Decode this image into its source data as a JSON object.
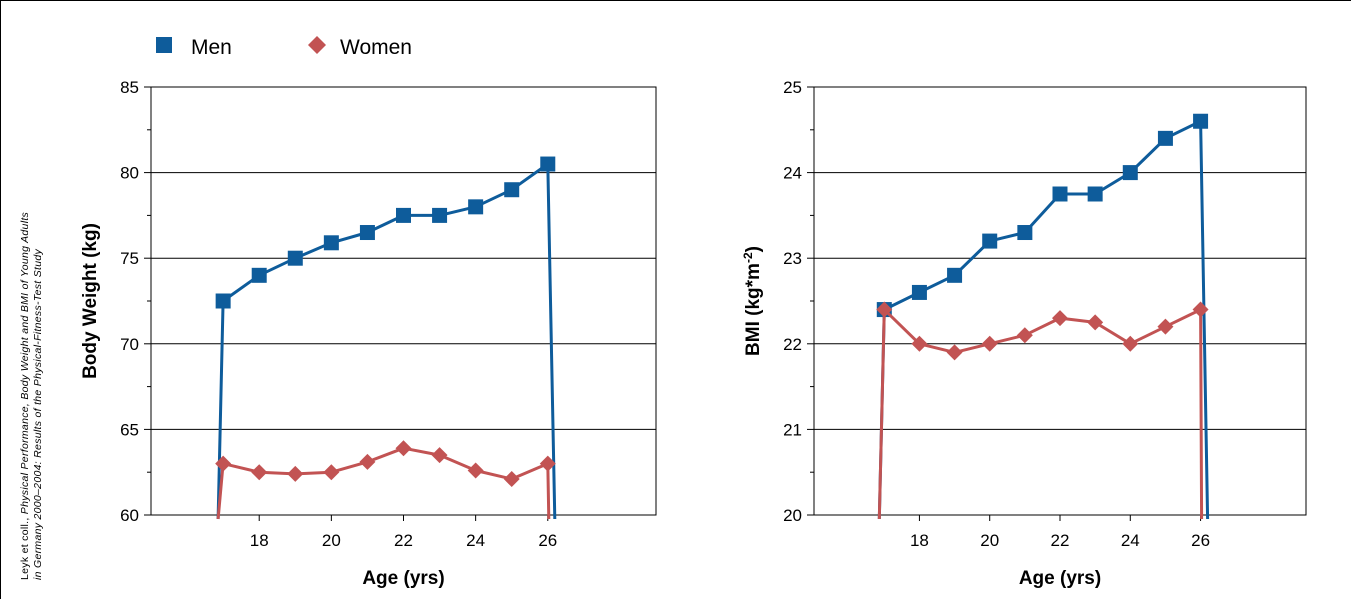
{
  "citation": {
    "line1_prefix": "Leyk et coll., ",
    "line1_italic": "Physical Performance, Body Weight and BMI of Young Adults",
    "line2_italic": "in Germany 2000–2004: Results of the Physical-Fitness-Test Study"
  },
  "legend": {
    "men_label": "Men",
    "women_label": "Women"
  },
  "colors": {
    "men": "#0e5c9b",
    "women": "#c25353",
    "grid": "#000000",
    "axis": "#000000"
  },
  "chart_data": [
    {
      "type": "line",
      "xlabel": "Age (yrs)",
      "ylabel": "Body Weight (kg)",
      "ylim": [
        60,
        85
      ],
      "xlim": [
        15,
        29
      ],
      "xticks": [
        18,
        20,
        22,
        24,
        26
      ],
      "yticks": [
        60,
        65,
        70,
        75,
        80,
        85
      ],
      "grid": true,
      "legend_position": "top-left",
      "series": [
        {
          "name": "Men",
          "marker": "square",
          "x": [
            17,
            18,
            19,
            20,
            21,
            22,
            23,
            24,
            25,
            26
          ],
          "values": [
            72.5,
            74.0,
            75.0,
            75.9,
            76.5,
            77.5,
            77.5,
            78.0,
            79.0,
            80.5
          ]
        },
        {
          "name": "Women",
          "marker": "diamond",
          "x": [
            17,
            18,
            19,
            20,
            21,
            22,
            23,
            24,
            25,
            26
          ],
          "values": [
            63.0,
            62.5,
            62.4,
            62.5,
            63.1,
            63.9,
            63.5,
            62.6,
            62.1,
            63.0
          ]
        }
      ]
    },
    {
      "type": "line",
      "xlabel": "Age (yrs)",
      "ylabel": "BMI (kg*m",
      "ylabel_sup": "-2",
      "ylabel_suffix": ")",
      "ylim": [
        20,
        25
      ],
      "xlim": [
        15,
        29
      ],
      "xticks": [
        18,
        20,
        22,
        24,
        26
      ],
      "yticks": [
        20,
        21,
        22,
        23,
        24,
        25
      ],
      "grid": true,
      "series": [
        {
          "name": "Men",
          "marker": "square",
          "x": [
            17,
            18,
            19,
            20,
            21,
            22,
            23,
            24,
            25,
            26
          ],
          "values": [
            22.4,
            22.6,
            22.8,
            23.2,
            23.3,
            23.75,
            23.75,
            24.0,
            24.4,
            24.6
          ]
        },
        {
          "name": "Women",
          "marker": "diamond",
          "x": [
            17,
            18,
            19,
            20,
            21,
            22,
            23,
            24,
            25,
            26
          ],
          "values": [
            22.4,
            22.0,
            21.9,
            22.0,
            22.1,
            22.3,
            22.25,
            22.0,
            22.2,
            22.4
          ]
        }
      ]
    }
  ]
}
